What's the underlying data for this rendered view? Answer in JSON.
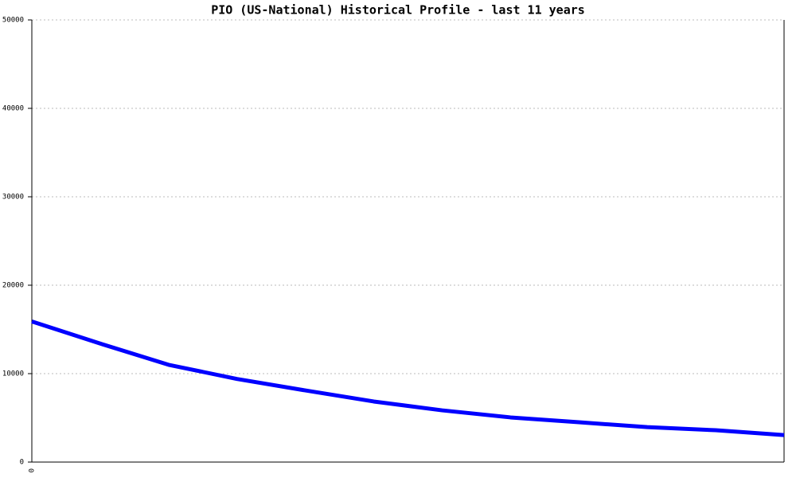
{
  "chart_data": {
    "type": "line",
    "title": "PIO (US-National) Historical Profile - last 11 years",
    "categories": [
      "0",
      null,
      null,
      null,
      null,
      null,
      null,
      null,
      null,
      null,
      null,
      null
    ],
    "series": [
      {
        "color": "#0000ff",
        "values": [
          15900,
          13400,
          11000,
          9400,
          8100,
          6850,
          5850,
          5050,
          4500,
          3950,
          3600,
          3050
        ]
      }
    ],
    "ylim": [
      0,
      50000
    ],
    "yticks": [
      0,
      10000,
      20000,
      30000,
      40000,
      50000
    ],
    "grid": true
  }
}
